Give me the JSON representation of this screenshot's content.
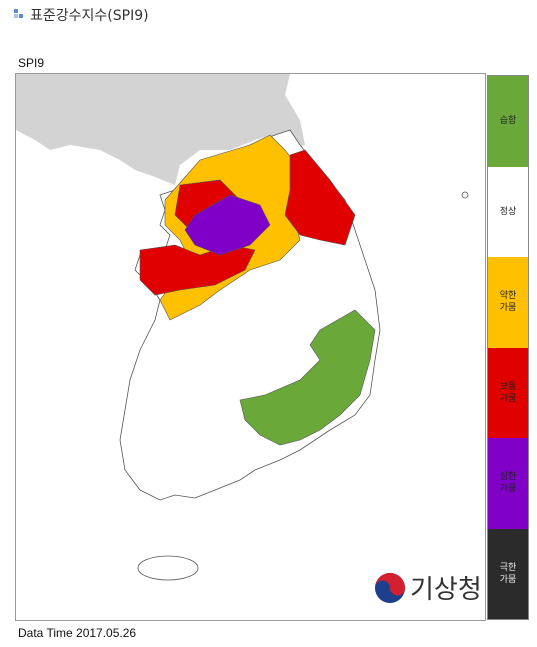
{
  "header": {
    "title": "표준강수지수(SPI9)"
  },
  "map": {
    "label": "SPI9",
    "data_time": "Data Time 2017.05.26",
    "logo": "기상청"
  },
  "legend": {
    "items": [
      {
        "label": "습함",
        "color": "#6aa83a"
      },
      {
        "label": "정상",
        "color": "#ffffff"
      },
      {
        "label": "약한 가뭄",
        "color": "#ffc000"
      },
      {
        "label": "보통 가뭄",
        "color": "#e00000"
      },
      {
        "label": "심한 가뭄",
        "color": "#8000c8"
      },
      {
        "label": "극한 가뭄",
        "color": "#2b2b2b"
      }
    ]
  }
}
